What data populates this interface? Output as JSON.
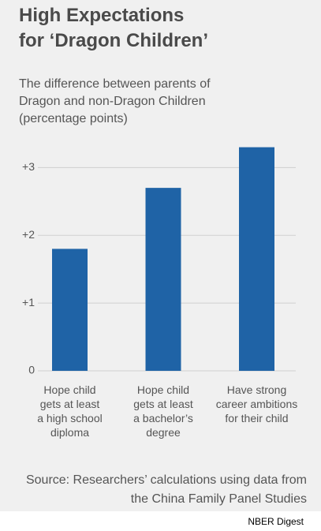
{
  "chart_data": {
    "type": "bar",
    "title": "High Expectations\nfor ‘Dragon Children’",
    "subtitle": "The difference between parents of\nDragon and non-Dragon Children\n(percentage points)",
    "categories": [
      "Hope child\ngets at least\na high school\ndiploma",
      "Hope child\ngets at least\na bachelor’s\ndegree",
      "Have strong\ncareer ambitions\nfor their child"
    ],
    "values": [
      1.8,
      2.7,
      3.3
    ],
    "color": "#1f63a6",
    "ylim": [
      0,
      3.4
    ],
    "yticks": [
      0,
      {
        "value": 1,
        "label": "+1"
      },
      {
        "value": 2,
        "label": "+2"
      },
      {
        "value": 3,
        "label": "+3"
      }
    ],
    "grid": true,
    "source": "Source: Researchers’ calculations using data from\nthe China Family Panel Studies",
    "credit": "NBER Digest"
  }
}
